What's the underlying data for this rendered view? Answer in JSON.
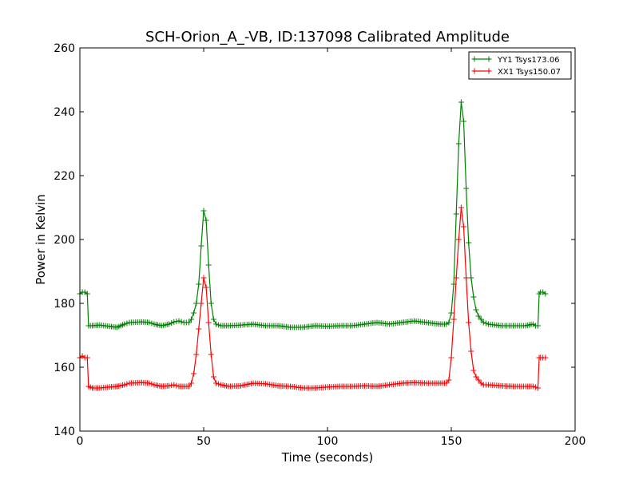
{
  "chart_data": {
    "type": "line",
    "title": "SCH-Orion_A_-VB, ID:137098 Calibrated Amplitude",
    "xlabel": "Time (seconds)",
    "ylabel": "Power in Kelvin",
    "xlim": [
      0,
      200
    ],
    "ylim": [
      140,
      260
    ],
    "xticks": [
      "0",
      "50",
      "100",
      "150",
      "200"
    ],
    "yticks": [
      "140",
      "160",
      "180",
      "200",
      "220",
      "240",
      "260"
    ],
    "grid": false,
    "legend_position": "top-right",
    "marker": "+",
    "series": [
      {
        "name": "YY1 Tsys173.06",
        "color": "#008000",
        "points": [
          [
            0,
            183
          ],
          [
            1,
            183.5
          ],
          [
            2,
            183.5
          ],
          [
            3,
            183
          ],
          [
            3.5,
            173
          ],
          [
            5,
            173
          ],
          [
            8,
            173.2
          ],
          [
            12,
            172.8
          ],
          [
            15,
            172.5
          ],
          [
            18,
            173.5
          ],
          [
            20,
            174
          ],
          [
            25,
            174.2
          ],
          [
            28,
            174
          ],
          [
            30,
            173.5
          ],
          [
            33,
            173
          ],
          [
            36,
            173.5
          ],
          [
            38,
            174.2
          ],
          [
            40,
            174.5
          ],
          [
            42,
            174
          ],
          [
            44,
            174
          ],
          [
            45,
            175
          ],
          [
            46,
            177
          ],
          [
            47,
            180
          ],
          [
            48,
            186
          ],
          [
            49,
            198
          ],
          [
            50,
            209
          ],
          [
            51,
            206
          ],
          [
            52,
            192
          ],
          [
            53,
            180
          ],
          [
            54,
            175
          ],
          [
            55,
            173.5
          ],
          [
            57,
            173
          ],
          [
            60,
            173
          ],
          [
            65,
            173.2
          ],
          [
            70,
            173.5
          ],
          [
            75,
            173
          ],
          [
            80,
            173
          ],
          [
            85,
            172.5
          ],
          [
            90,
            172.5
          ],
          [
            95,
            173
          ],
          [
            100,
            172.8
          ],
          [
            105,
            173
          ],
          [
            110,
            173
          ],
          [
            115,
            173.5
          ],
          [
            120,
            174
          ],
          [
            125,
            173.5
          ],
          [
            130,
            174
          ],
          [
            135,
            174.5
          ],
          [
            140,
            174
          ],
          [
            145,
            173.5
          ],
          [
            148,
            173.5
          ],
          [
            149,
            174
          ],
          [
            150,
            177
          ],
          [
            151,
            186
          ],
          [
            152,
            208
          ],
          [
            153,
            230
          ],
          [
            154,
            243
          ],
          [
            155,
            237
          ],
          [
            156,
            216
          ],
          [
            157,
            199
          ],
          [
            158,
            188
          ],
          [
            159,
            182
          ],
          [
            160,
            178
          ],
          [
            161,
            176
          ],
          [
            162,
            175
          ],
          [
            163,
            174
          ],
          [
            165,
            173.5
          ],
          [
            170,
            173
          ],
          [
            175,
            173
          ],
          [
            180,
            173
          ],
          [
            183,
            173.5
          ],
          [
            184,
            173
          ],
          [
            185,
            173
          ],
          [
            185.5,
            183
          ],
          [
            186,
            183.5
          ],
          [
            187,
            183.5
          ],
          [
            188,
            183
          ]
        ]
      },
      {
        "name": "XX1 Tsys150.07",
        "color": "#ff0000",
        "points": [
          [
            0,
            163
          ],
          [
            1,
            163.5
          ],
          [
            2,
            163
          ],
          [
            3,
            163
          ],
          [
            3.5,
            154
          ],
          [
            5,
            153.5
          ],
          [
            8,
            153.5
          ],
          [
            12,
            153.8
          ],
          [
            15,
            154
          ],
          [
            18,
            154.5
          ],
          [
            20,
            155
          ],
          [
            25,
            155.2
          ],
          [
            28,
            155
          ],
          [
            30,
            154.5
          ],
          [
            33,
            154
          ],
          [
            36,
            154.2
          ],
          [
            38,
            154.5
          ],
          [
            40,
            154
          ],
          [
            44,
            154
          ],
          [
            45,
            155
          ],
          [
            46,
            158
          ],
          [
            47,
            164
          ],
          [
            48,
            172
          ],
          [
            49,
            180
          ],
          [
            50,
            188
          ],
          [
            51,
            185
          ],
          [
            52,
            174
          ],
          [
            53,
            164
          ],
          [
            54,
            157
          ],
          [
            55,
            155
          ],
          [
            57,
            154.5
          ],
          [
            60,
            154
          ],
          [
            65,
            154.2
          ],
          [
            70,
            155
          ],
          [
            75,
            154.8
          ],
          [
            80,
            154.2
          ],
          [
            85,
            154
          ],
          [
            90,
            153.5
          ],
          [
            95,
            153.5
          ],
          [
            100,
            153.8
          ],
          [
            105,
            154
          ],
          [
            110,
            154
          ],
          [
            115,
            154.2
          ],
          [
            120,
            154
          ],
          [
            125,
            154.5
          ],
          [
            130,
            155
          ],
          [
            135,
            155.2
          ],
          [
            140,
            155
          ],
          [
            145,
            155
          ],
          [
            148,
            155
          ],
          [
            149,
            156
          ],
          [
            150,
            163
          ],
          [
            151,
            175
          ],
          [
            152,
            188
          ],
          [
            153,
            200
          ],
          [
            154,
            210
          ],
          [
            155,
            204
          ],
          [
            156,
            188
          ],
          [
            157,
            174
          ],
          [
            158,
            165
          ],
          [
            159,
            159
          ],
          [
            160,
            157
          ],
          [
            161,
            156
          ],
          [
            162,
            155
          ],
          [
            163,
            154.5
          ],
          [
            165,
            154.5
          ],
          [
            170,
            154.2
          ],
          [
            175,
            154
          ],
          [
            180,
            154
          ],
          [
            183,
            154
          ],
          [
            185,
            153.5
          ],
          [
            185.5,
            163
          ],
          [
            186,
            163
          ],
          [
            187,
            163
          ],
          [
            188,
            163
          ]
        ]
      }
    ]
  }
}
